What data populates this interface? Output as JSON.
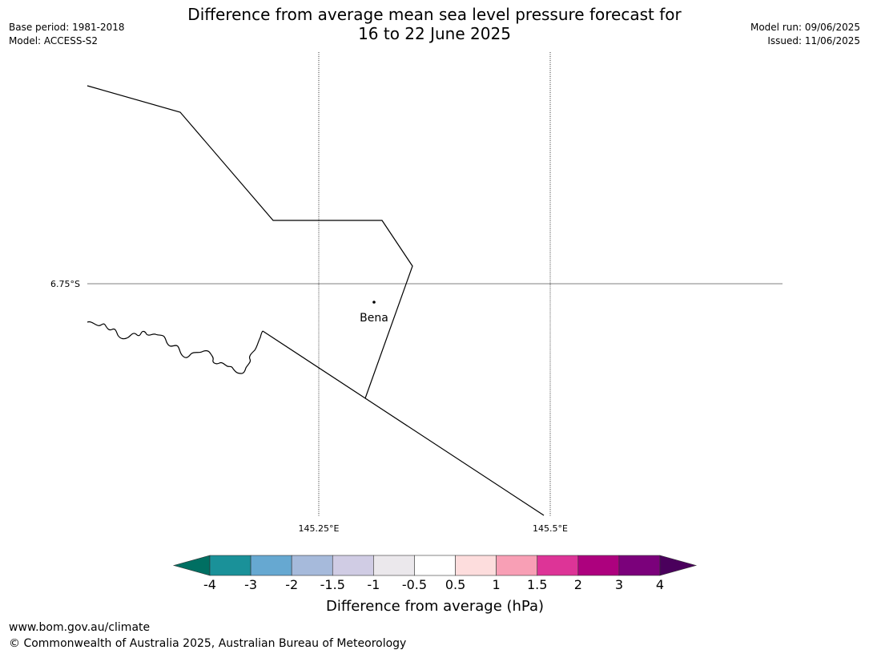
{
  "title": {
    "line1": "Difference from average mean sea level pressure forecast for",
    "line2": "16 to 22 June 2025"
  },
  "meta_left": {
    "base_period": "Base period: 1981-2018",
    "model": "Model: ACCESS-S2"
  },
  "meta_right": {
    "model_run": "Model run: 09/06/2025",
    "issued": "Issued: 11/06/2025"
  },
  "map": {
    "lat_labels": [
      "6.75°S"
    ],
    "lon_labels": [
      "145.25°E",
      "145.5°E"
    ],
    "places": [
      {
        "name": "Bena"
      }
    ]
  },
  "colorbar": {
    "title": "Difference from average (hPa)",
    "ticks": [
      "-4",
      "-3",
      "-2",
      "-1.5",
      "-1",
      "-0.5",
      "0.5",
      "1",
      "1.5",
      "2",
      "3",
      "4"
    ],
    "colors": [
      "#006f62",
      "#1a9199",
      "#66a8d1",
      "#a6badb",
      "#d0cce4",
      "#ebe8ec",
      "#ffffff",
      "#fddddd",
      "#f89fb5",
      "#dd3497",
      "#ad017e",
      "#7b017b",
      "#4a005c"
    ]
  },
  "footer": {
    "url": "www.bom.gov.au/climate",
    "copyright": "© Commonwealth of Australia 2025, Australian Bureau of Meteorology"
  }
}
